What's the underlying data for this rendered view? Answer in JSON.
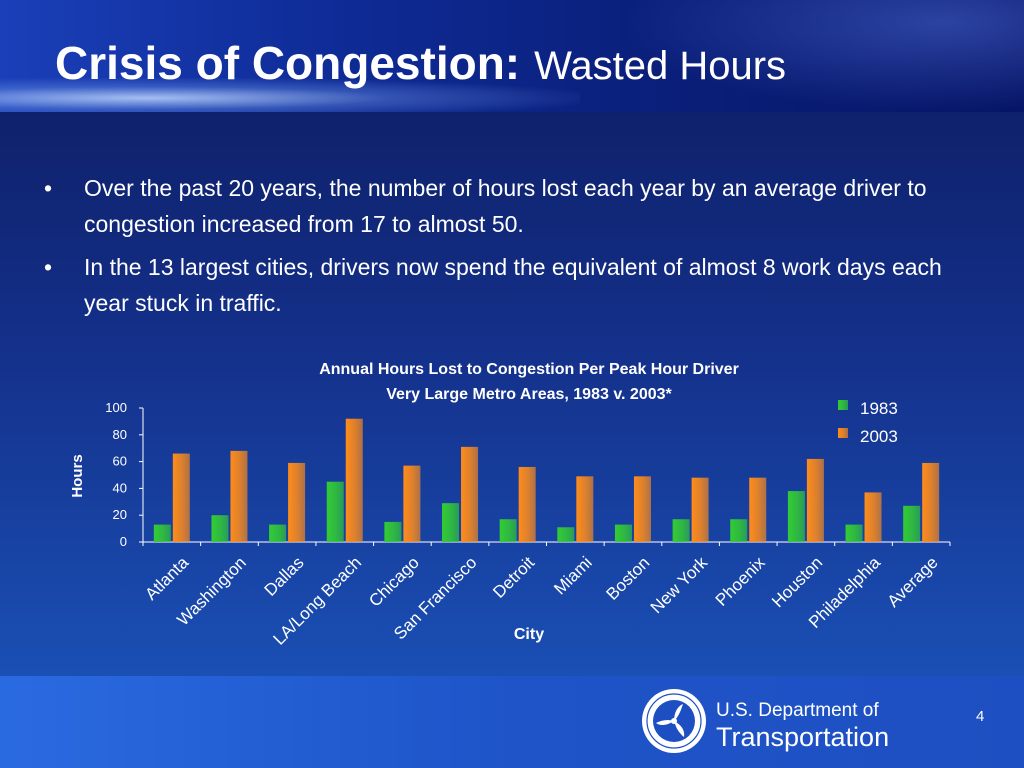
{
  "header": {
    "title_bold": "Crisis of Congestion:",
    "title_light": "Wasted Hours"
  },
  "bullets": [
    "Over the past 20 years, the number of hours lost each year by an average driver to congestion increased from 17 to almost 50.",
    "In the 13 largest cities, drivers now spend the equivalent of almost 8 work days each year stuck in traffic."
  ],
  "bullet_glyph": "•",
  "chart_data": {
    "type": "bar",
    "title": "Annual Hours Lost to Congestion Per Peak Hour Driver",
    "subtitle": "Very Large Metro Areas, 1983 v. 2003*",
    "xlabel": "City",
    "ylabel": "Hours",
    "ylim": [
      0,
      100
    ],
    "yticks": [
      0,
      20,
      40,
      60,
      80,
      100
    ],
    "grid": false,
    "legend": "top-right",
    "categories": [
      "Atlanta",
      "Washington",
      "Dallas",
      "LA/Long Beach",
      "Chicago",
      "San Francisco",
      "Detroit",
      "Miami",
      "Boston",
      "New York",
      "Phoenix",
      "Houston",
      "Philadelphia",
      "Average"
    ],
    "series": [
      {
        "name": "1983",
        "color": "#33cc33",
        "values": [
          13,
          20,
          13,
          45,
          15,
          29,
          17,
          11,
          13,
          17,
          17,
          38,
          13,
          27
        ]
      },
      {
        "name": "2003",
        "color": "#ff8c1a",
        "values": [
          66,
          68,
          59,
          92,
          57,
          71,
          56,
          49,
          49,
          48,
          48,
          62,
          37,
          59
        ]
      }
    ]
  },
  "footer": {
    "dept_line1": "U.S. Department of",
    "dept_line2": "Transportation",
    "page_number": "4"
  }
}
